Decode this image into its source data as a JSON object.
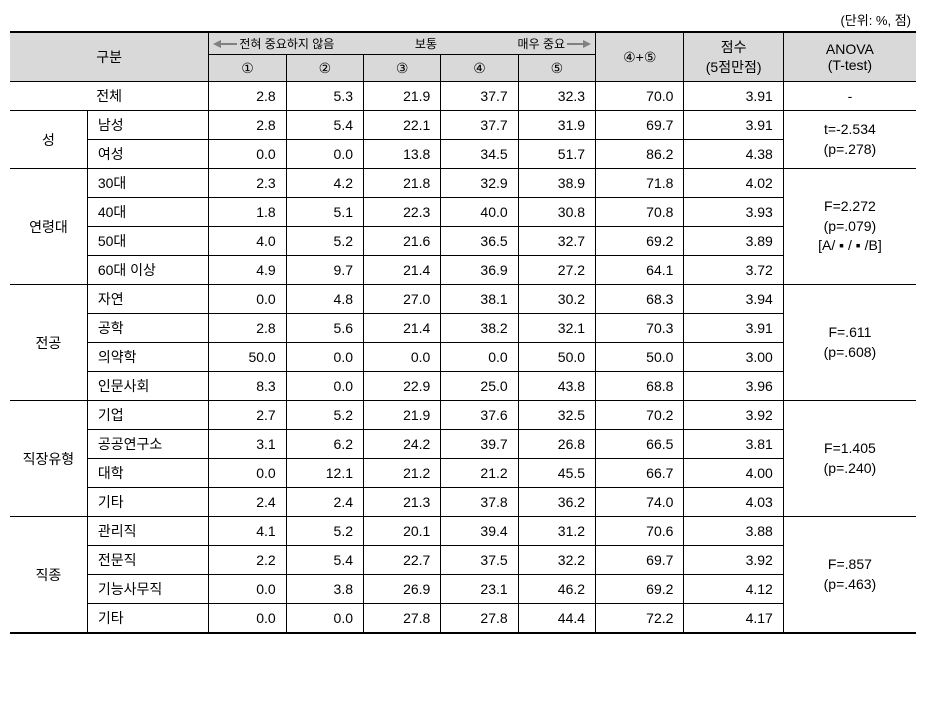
{
  "unit_label": "(단위: %, 점)",
  "headers": {
    "category": "구분",
    "scale_not_important": "전혀 중요하지 않음",
    "scale_normal": "보통",
    "scale_very_important": "매우 중요",
    "col1": "①",
    "col2": "②",
    "col3": "③",
    "col4": "④",
    "col5": "⑤",
    "sum45": "④+⑤",
    "score": "점수",
    "score_sub": "(5점만점)",
    "anova": "ANOVA",
    "anova_sub": "(T-test)"
  },
  "total": {
    "label": "전체",
    "v1": "2.8",
    "v2": "5.3",
    "v3": "21.9",
    "v4": "37.7",
    "v5": "32.3",
    "sum": "70.0",
    "score": "3.91",
    "anova": "-"
  },
  "groups": [
    {
      "name": "성",
      "anova": "t=-2.534\n(p=.278)",
      "rows": [
        {
          "label": "남성",
          "v1": "2.8",
          "v2": "5.4",
          "v3": "22.1",
          "v4": "37.7",
          "v5": "31.9",
          "sum": "69.7",
          "score": "3.91"
        },
        {
          "label": "여성",
          "v1": "0.0",
          "v2": "0.0",
          "v3": "13.8",
          "v4": "34.5",
          "v5": "51.7",
          "sum": "86.2",
          "score": "4.38"
        }
      ]
    },
    {
      "name": "연령대",
      "anova": "F=2.272\n(p=.079)\n[A/ ▪ / ▪ /B]",
      "rows": [
        {
          "label": "30대",
          "v1": "2.3",
          "v2": "4.2",
          "v3": "21.8",
          "v4": "32.9",
          "v5": "38.9",
          "sum": "71.8",
          "score": "4.02"
        },
        {
          "label": "40대",
          "v1": "1.8",
          "v2": "5.1",
          "v3": "22.3",
          "v4": "40.0",
          "v5": "30.8",
          "sum": "70.8",
          "score": "3.93"
        },
        {
          "label": "50대",
          "v1": "4.0",
          "v2": "5.2",
          "v3": "21.6",
          "v4": "36.5",
          "v5": "32.7",
          "sum": "69.2",
          "score": "3.89"
        },
        {
          "label": "60대 이상",
          "v1": "4.9",
          "v2": "9.7",
          "v3": "21.4",
          "v4": "36.9",
          "v5": "27.2",
          "sum": "64.1",
          "score": "3.72"
        }
      ]
    },
    {
      "name": "전공",
      "anova": "F=.611\n(p=.608)",
      "rows": [
        {
          "label": "자연",
          "v1": "0.0",
          "v2": "4.8",
          "v3": "27.0",
          "v4": "38.1",
          "v5": "30.2",
          "sum": "68.3",
          "score": "3.94"
        },
        {
          "label": "공학",
          "v1": "2.8",
          "v2": "5.6",
          "v3": "21.4",
          "v4": "38.2",
          "v5": "32.1",
          "sum": "70.3",
          "score": "3.91"
        },
        {
          "label": "의약학",
          "v1": "50.0",
          "v2": "0.0",
          "v3": "0.0",
          "v4": "0.0",
          "v5": "50.0",
          "sum": "50.0",
          "score": "3.00"
        },
        {
          "label": "인문사회",
          "v1": "8.3",
          "v2": "0.0",
          "v3": "22.9",
          "v4": "25.0",
          "v5": "43.8",
          "sum": "68.8",
          "score": "3.96"
        }
      ]
    },
    {
      "name": "직장유형",
      "anova": "F=1.405\n(p=.240)",
      "rows": [
        {
          "label": "기업",
          "v1": "2.7",
          "v2": "5.2",
          "v3": "21.9",
          "v4": "37.6",
          "v5": "32.5",
          "sum": "70.2",
          "score": "3.92"
        },
        {
          "label": "공공연구소",
          "v1": "3.1",
          "v2": "6.2",
          "v3": "24.2",
          "v4": "39.7",
          "v5": "26.8",
          "sum": "66.5",
          "score": "3.81"
        },
        {
          "label": "대학",
          "v1": "0.0",
          "v2": "12.1",
          "v3": "21.2",
          "v4": "21.2",
          "v5": "45.5",
          "sum": "66.7",
          "score": "4.00"
        },
        {
          "label": "기타",
          "v1": "2.4",
          "v2": "2.4",
          "v3": "21.3",
          "v4": "37.8",
          "v5": "36.2",
          "sum": "74.0",
          "score": "4.03"
        }
      ]
    },
    {
      "name": "직종",
      "anova": "F=.857\n(p=.463)",
      "rows": [
        {
          "label": "관리직",
          "v1": "4.1",
          "v2": "5.2",
          "v3": "20.1",
          "v4": "39.4",
          "v5": "31.2",
          "sum": "70.6",
          "score": "3.88"
        },
        {
          "label": "전문직",
          "v1": "2.2",
          "v2": "5.4",
          "v3": "22.7",
          "v4": "37.5",
          "v5": "32.2",
          "sum": "69.7",
          "score": "3.92"
        },
        {
          "label": "기능사무직",
          "v1": "0.0",
          "v2": "3.8",
          "v3": "26.9",
          "v4": "23.1",
          "v5": "46.2",
          "sum": "69.2",
          "score": "4.12"
        },
        {
          "label": "기타",
          "v1": "0.0",
          "v2": "0.0",
          "v3": "27.8",
          "v4": "27.8",
          "v5": "44.4",
          "sum": "72.2",
          "score": "4.17"
        }
      ]
    }
  ]
}
